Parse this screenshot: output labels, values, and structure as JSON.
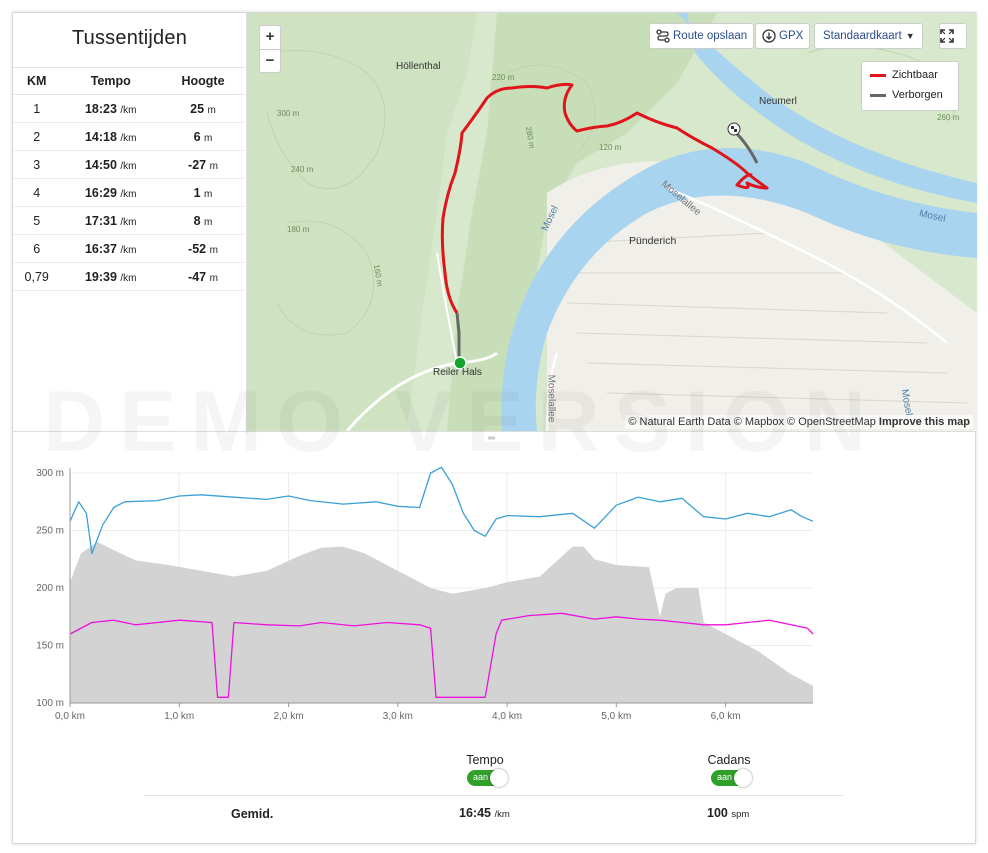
{
  "splits": {
    "title": "Tussentijden",
    "headers": [
      "KM",
      "Tempo",
      "Hoogte"
    ],
    "rows": [
      {
        "km": "1",
        "pace": "18:23",
        "pace_unit": "/km",
        "height": "25",
        "height_unit": "m"
      },
      {
        "km": "2",
        "pace": "14:18",
        "pace_unit": "/km",
        "height": "6",
        "height_unit": "m"
      },
      {
        "km": "3",
        "pace": "14:50",
        "pace_unit": "/km",
        "height": "-27",
        "height_unit": "m"
      },
      {
        "km": "4",
        "pace": "16:29",
        "pace_unit": "/km",
        "height": "1",
        "height_unit": "m"
      },
      {
        "km": "5",
        "pace": "17:31",
        "pace_unit": "/km",
        "height": "8",
        "height_unit": "m"
      },
      {
        "km": "6",
        "pace": "16:37",
        "pace_unit": "/km",
        "height": "-52",
        "height_unit": "m"
      },
      {
        "km": "0,79",
        "pace": "19:39",
        "pace_unit": "/km",
        "height": "-47",
        "height_unit": "m"
      }
    ]
  },
  "map": {
    "zoom_in": "+",
    "zoom_out": "−",
    "save_route_label": "Route opslaan",
    "gpx_label": "GPX",
    "map_style_label": "Standaardkaart",
    "legend": [
      {
        "label": "Zichtbaar",
        "color": "#e0141b"
      },
      {
        "label": "Verborgen",
        "color": "#666666"
      }
    ],
    "attribution": "© Natural Earth Data © Mapbox © OpenStreetMap",
    "attribution_link": "Improve this map",
    "places": {
      "hollenthal": "Höllenthal",
      "neumerl": "Neumerl",
      "punderich": "Pünderich",
      "reilerhals": "Reiler Hals",
      "mosel1": "Mosel",
      "mosel2": "Mosel",
      "mosel3": "Mosel",
      "moselallee1": "Moselallee",
      "moselallee2": "Moselallee",
      "c220": "220 m",
      "c280": "280 m",
      "c120": "120 m",
      "c300": "300 m",
      "c240": "240 m",
      "c180": "180 m",
      "c160": "160 m",
      "c260": "260 m"
    }
  },
  "watermark": "DEMO VERSION",
  "chart_data": {
    "type": "line",
    "title": "",
    "xlabel": "",
    "ylabel": "",
    "xlim": [
      0,
      6.8
    ],
    "ylim": [
      100,
      300
    ],
    "x_ticks": [
      "0,0 km",
      "1,0 km",
      "2,0 km",
      "3,0 km",
      "4,0 km",
      "5,0 km",
      "6,0 km"
    ],
    "y_ticks": [
      "100 m",
      "150 m",
      "200 m",
      "250 m",
      "300 m"
    ],
    "grid": true,
    "series": [
      {
        "name": "",
        "kind": "area",
        "color": "#d3d3d3",
        "x": [
          0.0,
          0.1,
          0.25,
          0.4,
          0.6,
          0.9,
          1.2,
          1.5,
          1.8,
          2.1,
          2.3,
          2.5,
          2.7,
          3.0,
          3.3,
          3.5,
          3.8,
          4.0,
          4.3,
          4.6,
          4.7,
          4.8,
          5.0,
          5.3,
          5.4,
          5.45,
          5.55,
          5.75,
          5.8,
          6.0,
          6.3,
          6.6,
          6.8
        ],
        "values": [
          205,
          230,
          240,
          233,
          224,
          220,
          215,
          210,
          215,
          228,
          235,
          236,
          230,
          215,
          200,
          195,
          200,
          205,
          210,
          236,
          236,
          225,
          220,
          218,
          175,
          195,
          200,
          200,
          170,
          160,
          145,
          125,
          115
        ]
      },
      {
        "name": "",
        "kind": "line",
        "color": "#3aa0d8",
        "x": [
          0.0,
          0.08,
          0.15,
          0.2,
          0.3,
          0.4,
          0.5,
          0.8,
          1.0,
          1.2,
          1.5,
          1.8,
          2.0,
          2.2,
          2.5,
          2.8,
          3.0,
          3.2,
          3.3,
          3.4,
          3.5,
          3.6,
          3.7,
          3.8,
          3.9,
          4.0,
          4.3,
          4.6,
          4.8,
          5.0,
          5.2,
          5.4,
          5.6,
          5.8,
          6.0,
          6.2,
          6.4,
          6.6,
          6.7,
          6.8
        ],
        "values": [
          258,
          275,
          265,
          230,
          255,
          270,
          275,
          276,
          280,
          281,
          279,
          277,
          280,
          276,
          273,
          275,
          271,
          270,
          300,
          305,
          290,
          265,
          250,
          245,
          260,
          263,
          262,
          265,
          252,
          272,
          279,
          275,
          278,
          262,
          260,
          265,
          262,
          268,
          262,
          258
        ]
      },
      {
        "name": "",
        "kind": "line",
        "color": "#ee11dd",
        "x": [
          0.0,
          0.2,
          0.4,
          0.6,
          0.8,
          1.0,
          1.3,
          1.35,
          1.45,
          1.5,
          1.8,
          2.1,
          2.3,
          2.6,
          2.9,
          3.2,
          3.3,
          3.35,
          3.5,
          3.8,
          3.9,
          3.95,
          4.2,
          4.5,
          4.8,
          5.0,
          5.2,
          5.4,
          5.6,
          5.8,
          6.0,
          6.2,
          6.4,
          6.6,
          6.75,
          6.8
        ],
        "values": [
          160,
          170,
          172,
          168,
          170,
          172,
          170,
          105,
          105,
          170,
          168,
          167,
          170,
          167,
          170,
          168,
          165,
          105,
          105,
          105,
          160,
          172,
          176,
          178,
          173,
          175,
          173,
          172,
          170,
          168,
          168,
          170,
          172,
          168,
          165,
          160
        ]
      }
    ]
  },
  "controls": {
    "pace_label": "Tempo",
    "cadence_label": "Cadans",
    "pace_toggle": "aan",
    "cadence_toggle": "aan",
    "avg_label": "Gemid.",
    "avg_pace": "16:45",
    "avg_pace_unit": "/km",
    "avg_cadence": "100",
    "avg_cadence_unit": "spm"
  }
}
